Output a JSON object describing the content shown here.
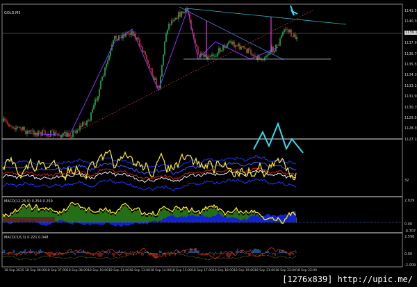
{
  "symbol_label": "GOLD,M5",
  "current_price": "1139.10",
  "price_axis": [
    "1141.50",
    "1140.30",
    "1139.10",
    "1137.90",
    "1136.70",
    "1135.50",
    "1134.30",
    "1133.10",
    "1131.90",
    "1130.70",
    "1129.50",
    "1128.30",
    "1127.10"
  ],
  "osc_panel": {
    "level": "32"
  },
  "macd1": {
    "label": "MACD(12,26,9) 0.254 0.259",
    "axis": [
      "2.029",
      "0.00",
      "-0.707"
    ]
  },
  "macd2": {
    "label": "MACD(3,6,3) 0.221 0.048",
    "axis": [
      "2.596",
      "0.00",
      "-2.009"
    ]
  },
  "time_axis": [
    "18 Sep 2015",
    "18 Sep 06:00",
    "18 Sep 07:00",
    "18 Sep 08:00",
    "18 Sep 10:00",
    "18 Sep 11:00",
    "18 Sep 13:00",
    "18 Sep 14:00",
    "18 Sep 15:00",
    "18 Sep 17:00",
    "18 Sep 18:00",
    "18 Sep 19:00",
    "18 Sep 21:00",
    "18 Sep 22:00",
    "18 Sep 23:00"
  ],
  "colors": {
    "bull": "#22cc66",
    "bear": "#ee3333",
    "zigzag": "#8833ff",
    "trend": "#33bbcc",
    "arrow": "#33ddee",
    "osc": "#ffee22",
    "band": "#2233ff"
  },
  "watermark": "[1276x839] http://upic.me/"
}
